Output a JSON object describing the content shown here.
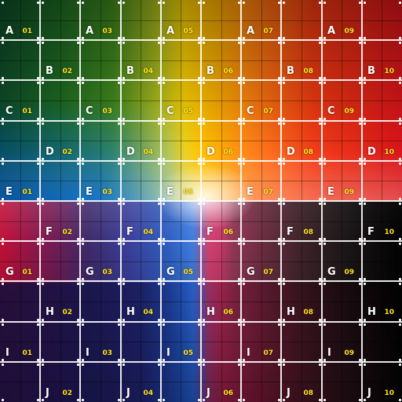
{
  "grid": {
    "rows": [
      "A",
      "B",
      "C",
      "D",
      "E",
      "F",
      "G",
      "H",
      "I",
      "J"
    ],
    "cells": [
      {
        "letter": "A",
        "number": "01",
        "row": 0,
        "col": 0
      },
      {
        "letter": "A",
        "number": "03",
        "row": 0,
        "col": 2
      },
      {
        "letter": "A",
        "number": "05",
        "row": 0,
        "col": 4
      },
      {
        "letter": "A",
        "number": "07",
        "row": 0,
        "col": 6
      },
      {
        "letter": "A",
        "number": "09",
        "row": 0,
        "col": 8
      },
      {
        "letter": "B",
        "number": "02",
        "row": 1,
        "col": 1
      },
      {
        "letter": "B",
        "number": "04",
        "row": 1,
        "col": 3
      },
      {
        "letter": "B",
        "number": "06",
        "row": 1,
        "col": 5
      },
      {
        "letter": "B",
        "number": "08",
        "row": 1,
        "col": 7
      },
      {
        "letter": "B",
        "number": "10",
        "row": 1,
        "col": 9
      },
      {
        "letter": "C",
        "number": "01",
        "row": 2,
        "col": 0
      },
      {
        "letter": "C",
        "number": "03",
        "row": 2,
        "col": 2
      },
      {
        "letter": "C",
        "number": "05",
        "row": 2,
        "col": 4
      },
      {
        "letter": "C",
        "number": "07",
        "row": 2,
        "col": 6
      },
      {
        "letter": "C",
        "number": "09",
        "row": 2,
        "col": 8
      },
      {
        "letter": "D",
        "number": "02",
        "row": 3,
        "col": 1
      },
      {
        "letter": "D",
        "number": "04",
        "row": 3,
        "col": 3
      },
      {
        "letter": "D",
        "number": "06",
        "row": 3,
        "col": 5
      },
      {
        "letter": "D",
        "number": "08",
        "row": 3,
        "col": 7
      },
      {
        "letter": "D",
        "number": "10",
        "row": 3,
        "col": 9
      },
      {
        "letter": "E",
        "number": "01",
        "row": 4,
        "col": 0
      },
      {
        "letter": "E",
        "number": "03",
        "row": 4,
        "col": 2
      },
      {
        "letter": "E",
        "number": "05",
        "row": 4,
        "col": 4
      },
      {
        "letter": "E",
        "number": "07",
        "row": 4,
        "col": 6
      },
      {
        "letter": "E",
        "number": "09",
        "row": 4,
        "col": 8
      },
      {
        "letter": "F",
        "number": "02",
        "row": 5,
        "col": 1
      },
      {
        "letter": "F",
        "number": "04",
        "row": 5,
        "col": 3
      },
      {
        "letter": "F",
        "number": "06",
        "row": 5,
        "col": 5
      },
      {
        "letter": "F",
        "number": "08",
        "row": 5,
        "col": 7
      },
      {
        "letter": "F",
        "number": "10",
        "row": 5,
        "col": 9
      },
      {
        "letter": "G",
        "number": "01",
        "row": 6,
        "col": 0
      },
      {
        "letter": "G",
        "number": "03",
        "row": 6,
        "col": 2
      },
      {
        "letter": "G",
        "number": "05",
        "row": 6,
        "col": 4
      },
      {
        "letter": "G",
        "number": "07",
        "row": 6,
        "col": 6
      },
      {
        "letter": "G",
        "number": "09",
        "row": 6,
        "col": 8
      },
      {
        "letter": "H",
        "number": "02",
        "row": 7,
        "col": 1
      },
      {
        "letter": "H",
        "number": "04",
        "row": 7,
        "col": 3
      },
      {
        "letter": "H",
        "number": "06",
        "row": 7,
        "col": 5
      },
      {
        "letter": "H",
        "number": "08",
        "row": 7,
        "col": 7
      },
      {
        "letter": "H",
        "number": "10",
        "row": 7,
        "col": 9
      },
      {
        "letter": "I",
        "number": "01",
        "row": 8,
        "col": 0
      },
      {
        "letter": "I",
        "number": "03",
        "row": 8,
        "col": 2
      },
      {
        "letter": "I",
        "number": "05",
        "row": 8,
        "col": 4
      },
      {
        "letter": "I",
        "number": "07",
        "row": 8,
        "col": 6
      },
      {
        "letter": "I",
        "number": "09",
        "row": 8,
        "col": 8
      },
      {
        "letter": "J",
        "number": "02",
        "row": 9,
        "col": 1
      },
      {
        "letter": "J",
        "number": "04",
        "row": 9,
        "col": 3
      },
      {
        "letter": "J",
        "number": "06",
        "row": 9,
        "col": 5
      },
      {
        "letter": "J",
        "number": "08",
        "row": 9,
        "col": 7
      },
      {
        "letter": "J",
        "number": "10",
        "row": 9,
        "col": 9
      }
    ]
  },
  "colors": {
    "letter": "#ffffff",
    "number": "#ffe21a",
    "main_grid_line": "#ffffff",
    "sub_grid_line": "#000000"
  }
}
